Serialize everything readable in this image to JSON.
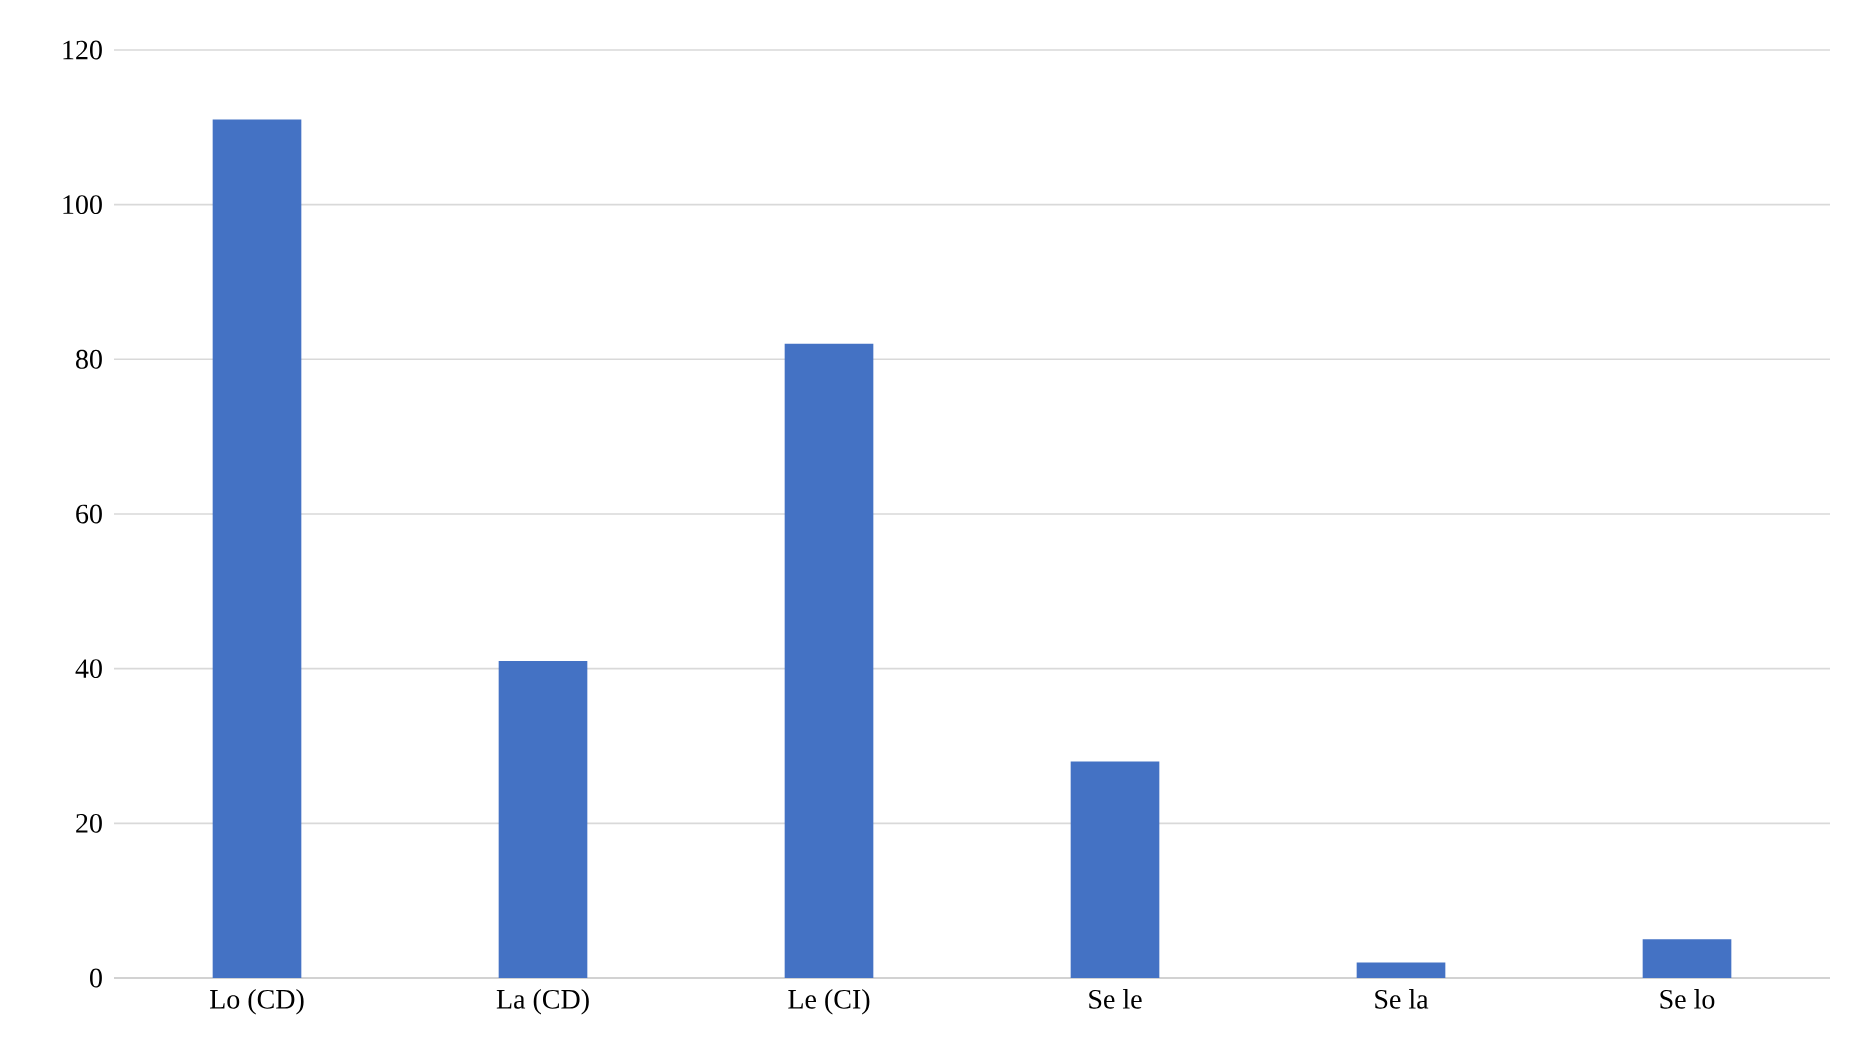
{
  "chart_data": {
    "type": "bar",
    "categories": [
      "Lo (CD)",
      "La (CD)",
      "Le (CI)",
      "Se le",
      "Se la",
      "Se lo"
    ],
    "values": [
      111,
      41,
      82,
      28,
      2,
      5
    ],
    "color": "#4472c4",
    "ylim": [
      0,
      120
    ],
    "yticks": [
      0,
      20,
      40,
      60,
      80,
      100,
      120
    ],
    "grid": "y"
  }
}
